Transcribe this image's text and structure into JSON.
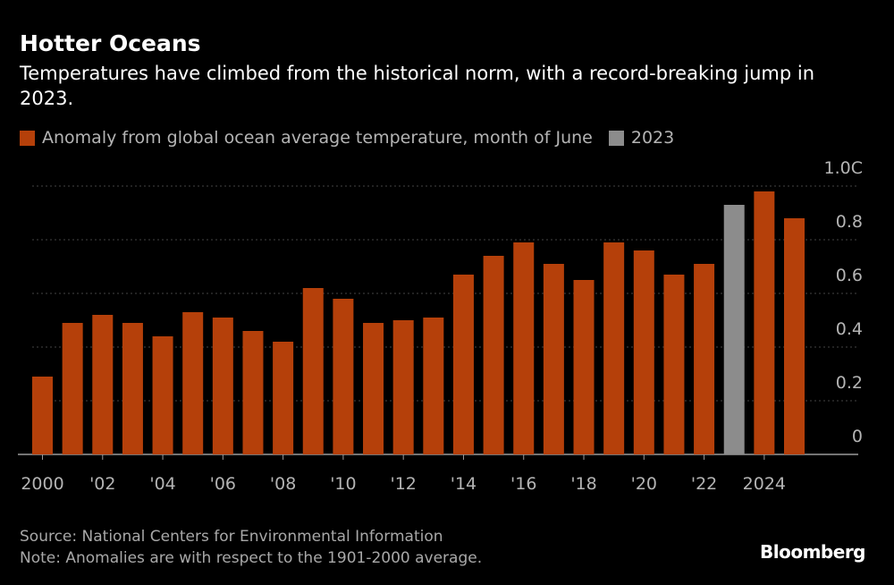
{
  "title": "Hotter Oceans",
  "subtitle": "Temperatures have climbed from the historical norm, with a record-breaking jump in 2023.",
  "source": "Source: National Centers for Environmental Information",
  "note": "Note: Anomalies are with respect to the 1901-2000 average.",
  "brand": "Bloomberg",
  "colors": {
    "primary": "#b5400a",
    "highlight": "#8c8c8c",
    "background": "#000000"
  },
  "chart_data": {
    "type": "bar",
    "title": "Hotter Oceans",
    "legend": [
      {
        "name": "Anomaly from global ocean average temperature, month of June",
        "color": "#b5400a"
      },
      {
        "name": "2023",
        "color": "#8c8c8c"
      }
    ],
    "legend_position": "top-left",
    "categories": [
      2000,
      2001,
      2002,
      2003,
      2004,
      2005,
      2006,
      2007,
      2008,
      2009,
      2010,
      2011,
      2012,
      2013,
      2014,
      2015,
      2016,
      2017,
      2018,
      2019,
      2020,
      2021,
      2022,
      2023,
      2024,
      2025
    ],
    "values": [
      0.29,
      0.49,
      0.52,
      0.49,
      0.44,
      0.53,
      0.51,
      0.46,
      0.42,
      0.62,
      0.58,
      0.49,
      0.5,
      0.51,
      0.67,
      0.74,
      0.79,
      0.71,
      0.65,
      0.79,
      0.76,
      0.67,
      0.71,
      0.93,
      0.98,
      0.88
    ],
    "highlight": [
      2023
    ],
    "x_tick_labels": [
      {
        "x": 2000,
        "label": "2000"
      },
      {
        "x": 2002,
        "label": "'02"
      },
      {
        "x": 2004,
        "label": "'04"
      },
      {
        "x": 2006,
        "label": "'06"
      },
      {
        "x": 2008,
        "label": "'08"
      },
      {
        "x": 2010,
        "label": "'10"
      },
      {
        "x": 2012,
        "label": "'12"
      },
      {
        "x": 2014,
        "label": "'14"
      },
      {
        "x": 2016,
        "label": "'16"
      },
      {
        "x": 2018,
        "label": "'18"
      },
      {
        "x": 2020,
        "label": "'20"
      },
      {
        "x": 2022,
        "label": "'22"
      },
      {
        "x": 2024,
        "label": "2024"
      }
    ],
    "y_ticks": [
      {
        "v": 0,
        "label": "0"
      },
      {
        "v": 0.2,
        "label": "0.2"
      },
      {
        "v": 0.4,
        "label": "0.4"
      },
      {
        "v": 0.6,
        "label": "0.6"
      },
      {
        "v": 0.8,
        "label": "0.8"
      },
      {
        "v": 1.0,
        "label": "1.0C"
      }
    ],
    "ylim": [
      0,
      1.0
    ],
    "y_axis_side": "right",
    "grid": true
  }
}
